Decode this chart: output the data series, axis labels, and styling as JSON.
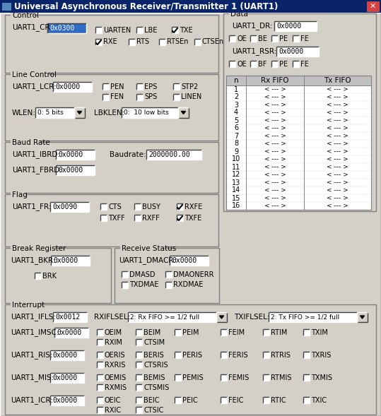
{
  "title": "Universal Asynchronous Receiver/Transmitter 1 (UART1)",
  "bg_color": "#d4d0c8",
  "title_bar_color": "#0a246a",
  "text_color": "#000000",
  "input_bg": "#ffffff",
  "input_selected_bg": "#316ac5",
  "fifo_rows": [
    "1",
    "2",
    "3",
    "4",
    "5",
    "6",
    "7",
    "8",
    "9",
    "10",
    "11",
    "12",
    "13",
    "14",
    "15",
    "16"
  ],
  "fifo_val": "< --- >"
}
